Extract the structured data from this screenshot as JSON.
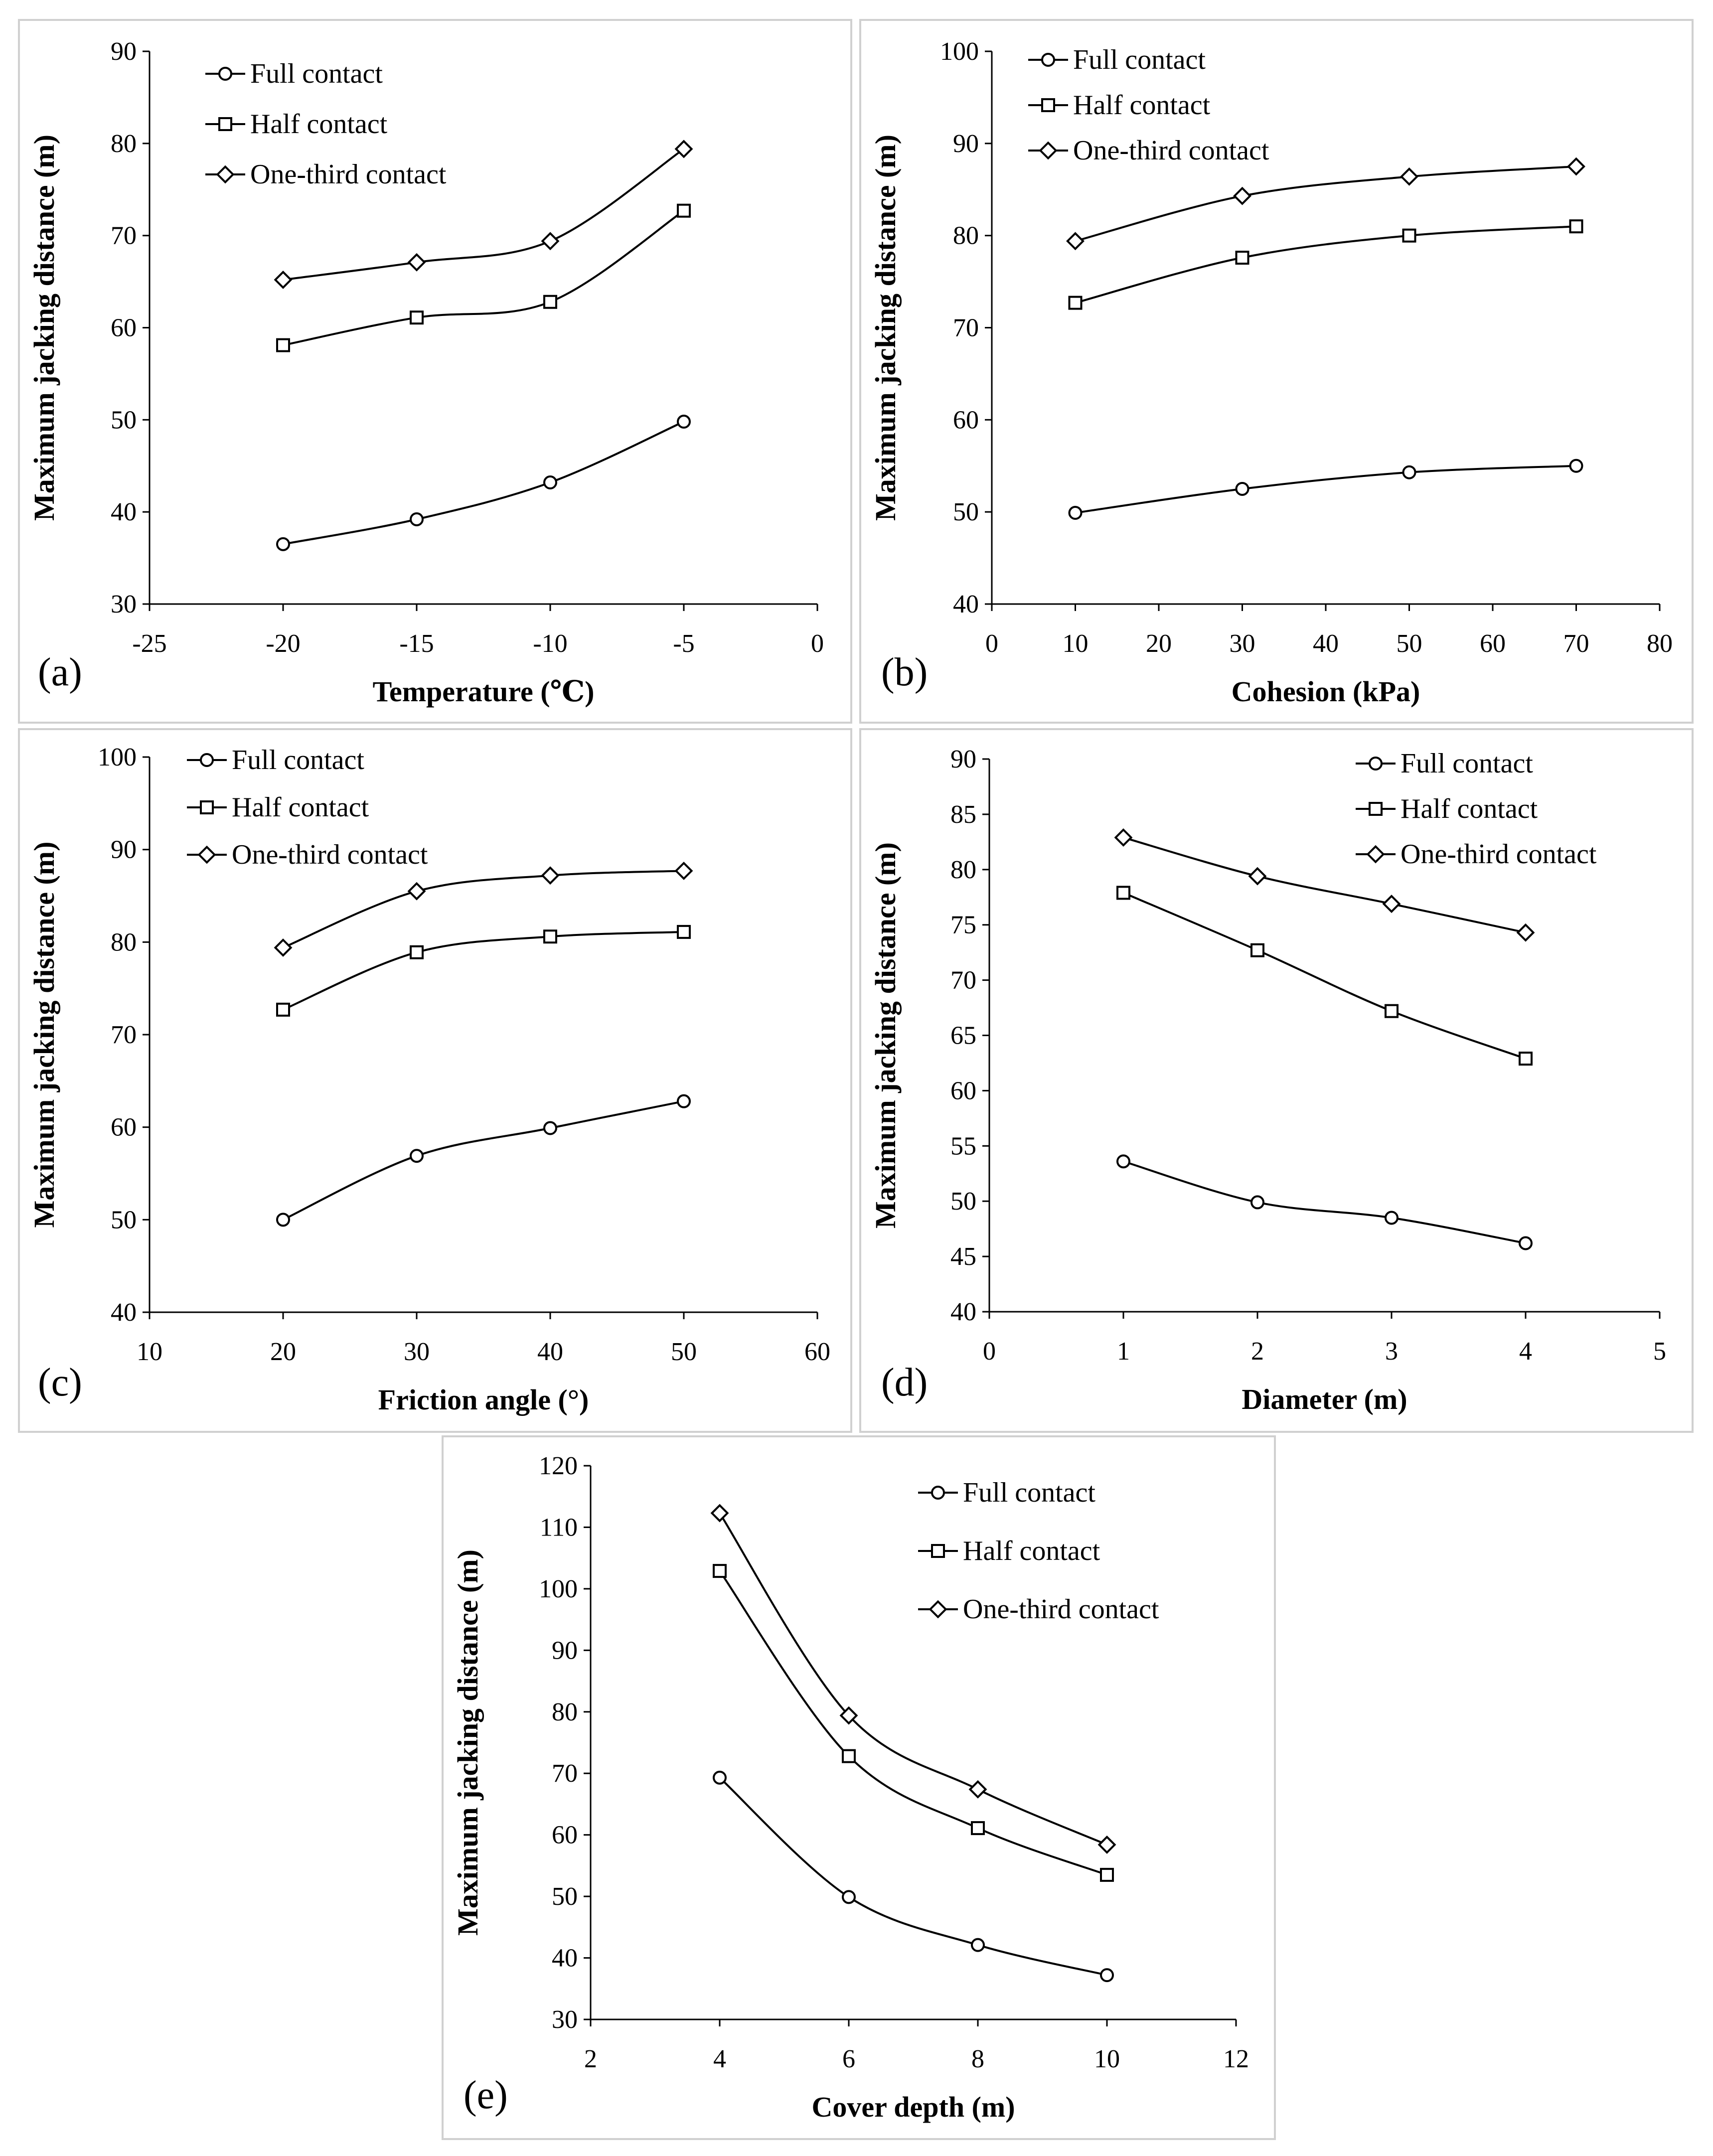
{
  "series_names": [
    "Full contact",
    "Half contact",
    "One-third contact"
  ],
  "colors": {
    "line": "#000000",
    "panel_border": "#d0d0d0",
    "background": "#ffffff"
  },
  "chart_data": [
    {
      "type": "line",
      "panel_label": "(a)",
      "title": "",
      "xlabel": "Temperature (℃)",
      "ylabel": "Maximum jacking distance (m)",
      "xlim": [
        -25,
        0
      ],
      "ylim": [
        30,
        90
      ],
      "xticks": [
        -25,
        -20,
        -15,
        -10,
        -5,
        0
      ],
      "yticks": [
        30,
        40,
        50,
        60,
        70,
        80,
        90
      ],
      "x": [
        -20,
        -15,
        -10,
        -5
      ],
      "legend": "top-left",
      "series": [
        {
          "name": "Full contact",
          "marker": "circle",
          "values": [
            36.5,
            39.2,
            43.2,
            49.8
          ]
        },
        {
          "name": "Half contact",
          "marker": "square",
          "values": [
            58.1,
            61.1,
            62.8,
            72.7
          ]
        },
        {
          "name": "One-third contact",
          "marker": "diamond",
          "values": [
            65.2,
            67.1,
            69.4,
            79.4
          ]
        }
      ]
    },
    {
      "type": "line",
      "panel_label": "(b)",
      "title": "",
      "xlabel": "Cohesion (kPa)",
      "ylabel": "Maximum jacking distance (m)",
      "xlim": [
        0,
        80
      ],
      "ylim": [
        40,
        100
      ],
      "xticks": [
        0,
        10,
        20,
        30,
        40,
        50,
        60,
        70,
        80
      ],
      "yticks": [
        40,
        50,
        60,
        70,
        80,
        90,
        100
      ],
      "x": [
        10,
        30,
        50,
        70
      ],
      "legend": "top-left",
      "series": [
        {
          "name": "Full contact",
          "marker": "circle",
          "values": [
            49.9,
            52.5,
            54.3,
            55.0
          ]
        },
        {
          "name": "Half contact",
          "marker": "square",
          "values": [
            72.7,
            77.6,
            80.0,
            81.0
          ]
        },
        {
          "name": "One-third contact",
          "marker": "diamond",
          "values": [
            79.4,
            84.3,
            86.4,
            87.5
          ]
        }
      ]
    },
    {
      "type": "line",
      "panel_label": "(c)",
      "title": "",
      "xlabel": "Friction angle (°)",
      "ylabel": "Maximum jacking distance (m)",
      "xlim": [
        10,
        60
      ],
      "ylim": [
        40,
        100
      ],
      "xticks": [
        10,
        20,
        30,
        40,
        50,
        60
      ],
      "yticks": [
        40,
        50,
        60,
        70,
        80,
        90,
        100
      ],
      "x": [
        20,
        30,
        40,
        50
      ],
      "legend": "top-left",
      "series": [
        {
          "name": "Full contact",
          "marker": "circle",
          "values": [
            50.0,
            56.9,
            59.9,
            62.8
          ]
        },
        {
          "name": "Half contact",
          "marker": "square",
          "values": [
            72.7,
            78.9,
            80.6,
            81.1
          ]
        },
        {
          "name": "One-third contact",
          "marker": "diamond",
          "values": [
            79.4,
            85.5,
            87.2,
            87.7
          ]
        }
      ]
    },
    {
      "type": "line",
      "panel_label": "(d)",
      "title": "",
      "xlabel": "Diameter (m)",
      "ylabel": "Maximum jacking distance (m)",
      "xlim": [
        0,
        5
      ],
      "ylim": [
        40,
        90
      ],
      "xticks": [
        0,
        1,
        2,
        3,
        4,
        5
      ],
      "yticks": [
        40,
        45,
        50,
        55,
        60,
        65,
        70,
        75,
        80,
        85,
        90
      ],
      "x": [
        1,
        2,
        3,
        4
      ],
      "legend": "top-right",
      "series": [
        {
          "name": "Full contact",
          "marker": "circle",
          "values": [
            53.6,
            49.9,
            48.5,
            46.2
          ]
        },
        {
          "name": "Half contact",
          "marker": "square",
          "values": [
            77.9,
            72.7,
            67.2,
            62.9
          ]
        },
        {
          "name": "One-third contact",
          "marker": "diamond",
          "values": [
            82.9,
            79.4,
            76.9,
            74.3
          ]
        }
      ]
    },
    {
      "type": "line",
      "panel_label": "(e)",
      "title": "",
      "xlabel": "Cover depth (m)",
      "ylabel": "Maximum jacking distance (m)",
      "xlim": [
        2,
        12
      ],
      "ylim": [
        30,
        120
      ],
      "xticks": [
        2,
        4,
        6,
        8,
        10,
        12
      ],
      "yticks": [
        30,
        40,
        50,
        60,
        70,
        80,
        90,
        100,
        110,
        120
      ],
      "x": [
        4,
        6,
        8,
        10
      ],
      "legend": "top-right",
      "series": [
        {
          "name": "Full contact",
          "marker": "circle",
          "values": [
            69.3,
            49.9,
            42.1,
            37.2
          ]
        },
        {
          "name": "Half contact",
          "marker": "square",
          "values": [
            102.9,
            72.8,
            61.1,
            53.5
          ]
        },
        {
          "name": "One-third contact",
          "marker": "diamond",
          "values": [
            112.3,
            79.4,
            67.4,
            58.4
          ]
        }
      ]
    }
  ]
}
